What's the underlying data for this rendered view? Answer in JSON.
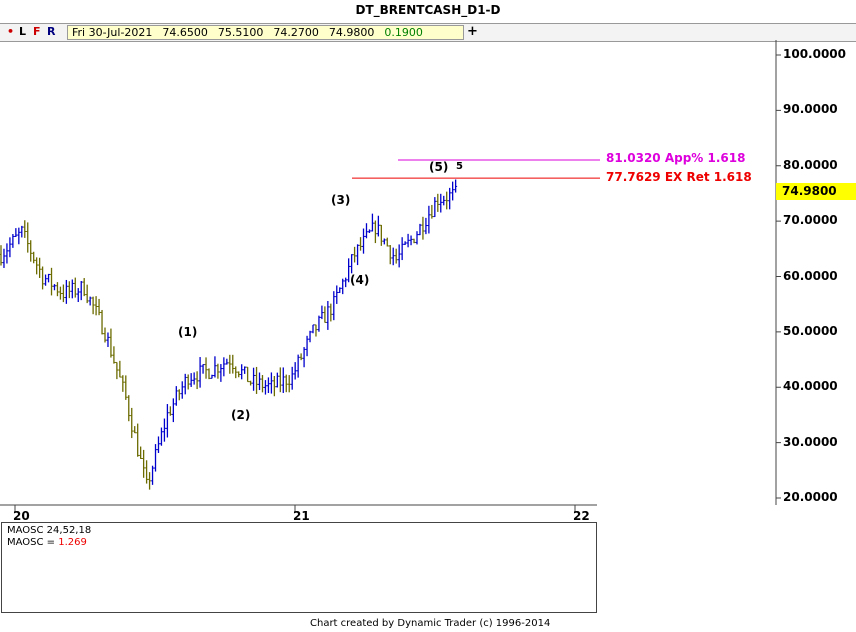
{
  "header": {
    "title": "DT_BRENTCASH_D1-D",
    "toolbar_buttons": [
      {
        "label": "•",
        "color": "#cc0000"
      },
      {
        "label": "L",
        "color": "#000000"
      },
      {
        "label": "F",
        "color": "#cc0000"
      },
      {
        "label": "R",
        "color": "#000080"
      }
    ],
    "quote": {
      "date": "Fri 30-Jul-2021",
      "open": "74.6500",
      "high": "75.5100",
      "low": "74.2700",
      "close": "74.9800",
      "change": "0.1900"
    },
    "add_symbol": "+"
  },
  "colors": {
    "up_bar": "#0000cc",
    "down_bar": "#6b6b00",
    "ext_target": "#dd00dd",
    "ret_target": "#ee0000",
    "osc_positive": "#008000",
    "osc_negative": "#ee0000",
    "last_price_bg": "#ffff00"
  },
  "chart_data": [
    {
      "type": "ohlc",
      "title": "DT_BRENTCASH_D1-D",
      "x_tick_labels": [
        "20",
        "21",
        "22"
      ],
      "y_tick_labels": [
        "20.0000",
        "30.0000",
        "40.0000",
        "50.0000",
        "60.0000",
        "70.0000",
        "80.0000",
        "90.0000",
        "100.0000"
      ],
      "ylim": [
        20,
        100
      ],
      "last_price": "74.9800",
      "close_path": [
        {
          "x": "2019-09",
          "y": 64
        },
        {
          "x": "2019-10",
          "y": 68
        },
        {
          "x": "2019-11",
          "y": 60
        },
        {
          "x": "2019-12",
          "y": 57
        },
        {
          "x": "2020-01",
          "y": 58
        },
        {
          "x": "2020-02",
          "y": 50
        },
        {
          "x": "2020-03",
          "y": 38
        },
        {
          "x": "2020-04",
          "y": 22
        },
        {
          "x": "2020-05",
          "y": 35
        },
        {
          "x": "2020-06",
          "y": 42
        },
        {
          "x": "2020-07",
          "y": 43
        },
        {
          "x": "2020-08",
          "y": 45
        },
        {
          "x": "2020-09",
          "y": 41
        },
        {
          "x": "2020-10",
          "y": 40
        },
        {
          "x": "2020-11",
          "y": 42
        },
        {
          "x": "2020-12",
          "y": 50
        },
        {
          "x": "2021-01",
          "y": 55
        },
        {
          "x": "2021-02",
          "y": 64
        },
        {
          "x": "2021-03",
          "y": 69
        },
        {
          "x": "2021-04",
          "y": 63
        },
        {
          "x": "2021-05",
          "y": 68
        },
        {
          "x": "2021-06",
          "y": 74
        },
        {
          "x": "2021-07",
          "y": 75
        }
      ],
      "wave_labels": [
        {
          "label": "(1)",
          "x": "2020-08",
          "y": 46
        },
        {
          "label": "(2)",
          "x": "2020-11",
          "y": 37
        },
        {
          "label": "(3)",
          "x": "2021-03",
          "y": 71
        },
        {
          "label": "(4)",
          "x": "2021-03",
          "y": 60
        },
        {
          "label": "(5)",
          "x": "2021-07",
          "y": 77.5
        },
        {
          "label": "5",
          "x": "2021-07",
          "y": 77.5
        }
      ],
      "targets": [
        {
          "label": "81.0320 App% 1.618",
          "value": 81.032,
          "color": "#dd00dd"
        },
        {
          "label": "77.7629 EX Ret 1.618",
          "value": 77.7629,
          "color": "#ee0000"
        }
      ]
    },
    {
      "type": "histogram",
      "name": "MAOSC 24,52,18",
      "value_label": "MAOSC =",
      "value": "1.269",
      "value_color": "#ee0000"
    }
  ],
  "footer": {
    "credit": "Chart created by Dynamic Trader  (c) 1996-2014"
  }
}
